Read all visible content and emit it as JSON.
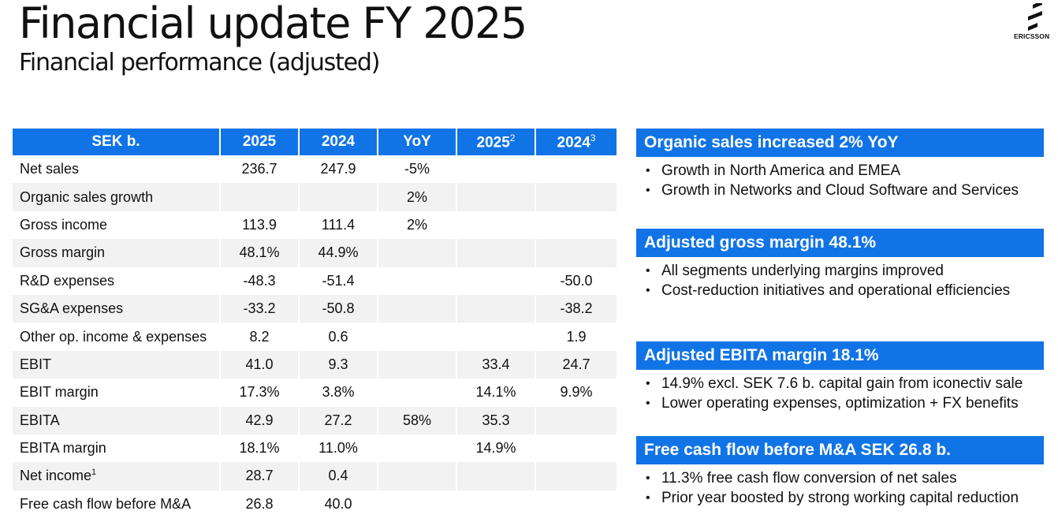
{
  "header": {
    "title": "Financial update FY 2025",
    "subtitle": "Financial performance (adjusted)",
    "logo_text": "ERICSSON"
  },
  "table": {
    "columns": [
      {
        "label": "SEK b.",
        "sup": ""
      },
      {
        "label": "2025",
        "sup": ""
      },
      {
        "label": "2024",
        "sup": ""
      },
      {
        "label": "YoY",
        "sup": ""
      },
      {
        "label": "2025",
        "sup": "2"
      },
      {
        "label": "2024",
        "sup": "3"
      }
    ],
    "rows": [
      {
        "label": "Net sales",
        "sup": "",
        "cells": [
          "236.7",
          "247.9",
          "-5%",
          "",
          ""
        ]
      },
      {
        "label": "Organic sales growth",
        "sup": "",
        "cells": [
          "",
          "",
          "2%",
          "",
          ""
        ]
      },
      {
        "label": "Gross income",
        "sup": "",
        "cells": [
          "113.9",
          "111.4",
          "2%",
          "",
          ""
        ]
      },
      {
        "label": "Gross margin",
        "sup": "",
        "cells": [
          "48.1%",
          "44.9%",
          "",
          "",
          ""
        ]
      },
      {
        "label": "R&D expenses",
        "sup": "",
        "cells": [
          "-48.3",
          "-51.4",
          "",
          "",
          "-50.0"
        ]
      },
      {
        "label": "SG&A expenses",
        "sup": "",
        "cells": [
          "-33.2",
          "-50.8",
          "",
          "",
          "-38.2"
        ]
      },
      {
        "label": "Other op. income & expenses",
        "sup": "",
        "cells": [
          "8.2",
          "0.6",
          "",
          "",
          "1.9"
        ]
      },
      {
        "label": "EBIT",
        "sup": "",
        "cells": [
          "41.0",
          "9.3",
          "",
          "33.4",
          "24.7"
        ]
      },
      {
        "label": "EBIT margin",
        "sup": "",
        "cells": [
          "17.3%",
          "3.8%",
          "",
          "14.1%",
          "9.9%"
        ]
      },
      {
        "label": "EBITA",
        "sup": "",
        "cells": [
          "42.9",
          "27.2",
          "58%",
          "35.3",
          ""
        ]
      },
      {
        "label": "EBITA margin",
        "sup": "",
        "cells": [
          "18.1%",
          "11.0%",
          "",
          "14.9%",
          ""
        ]
      },
      {
        "label": "Net income",
        "sup": "1",
        "cells": [
          "28.7",
          "0.4",
          "",
          "",
          ""
        ]
      },
      {
        "label": "Free cash flow before M&A",
        "sup": "",
        "cells": [
          "26.8",
          "40.0",
          "",
          "",
          ""
        ]
      }
    ]
  },
  "panels": [
    {
      "title": "Organic sales increased 2% YoY",
      "bullets": [
        "Growth in North America and EMEA",
        "Growth in Networks and Cloud Software and Services"
      ]
    },
    {
      "title": "Adjusted gross margin 48.1%",
      "bullets": [
        "All segments underlying margins improved",
        "Cost-reduction initiatives and operational efficiencies"
      ]
    },
    {
      "title": "Adjusted EBITA margin 18.1%",
      "bullets": [
        "14.9% excl. SEK 7.6 b. capital gain from iconectiv sale",
        "Lower operating expenses, optimization + FX benefits"
      ]
    },
    {
      "title": "Free cash flow before M&A SEK 26.8 b.",
      "bullets": [
        "11.3% free cash flow conversion of net sales",
        "Prior year boosted by strong working capital reduction"
      ]
    }
  ],
  "colors": {
    "accent": "#1174e6",
    "row_alt": "#f2f2f2",
    "text": "#111111"
  },
  "icons": [
    "ericsson-logo-icon"
  ]
}
